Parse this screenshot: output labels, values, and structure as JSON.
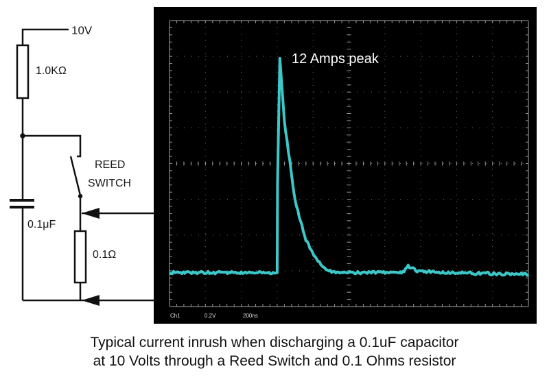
{
  "circuit": {
    "supply_label": "10V",
    "resistor1_label": "1.0KΩ",
    "switch_label_line1": "REED",
    "switch_label_line2": "SWITCH",
    "capacitor_label": "0.1μF",
    "resistor2_label": "0.1Ω"
  },
  "scope": {
    "annotation": "12 Amps peak",
    "channel": "Ch1",
    "volts_per_div": "0.2V",
    "time_per_div": "200ns",
    "trace_color": "#3cc8c8",
    "background": "#000000",
    "divisions": {
      "x": 10,
      "y": 8
    },
    "trace_points_ns_amps": [
      [
        0,
        0
      ],
      [
        600,
        0
      ],
      [
        602,
        5
      ],
      [
        615,
        12
      ],
      [
        640,
        8.5
      ],
      [
        700,
        4
      ],
      [
        760,
        1.8
      ],
      [
        820,
        0.7
      ],
      [
        880,
        0.1
      ],
      [
        950,
        0
      ],
      [
        1300,
        0
      ],
      [
        1330,
        0.35
      ],
      [
        1380,
        0.1
      ],
      [
        1500,
        0
      ],
      [
        2000,
        -0.1
      ]
    ]
  },
  "caption": {
    "line1": "Typical current inrush when discharging a 0.1uF capacitor",
    "line2": "at 10 Volts through a Reed Switch and 0.1 Ohms resistor"
  }
}
